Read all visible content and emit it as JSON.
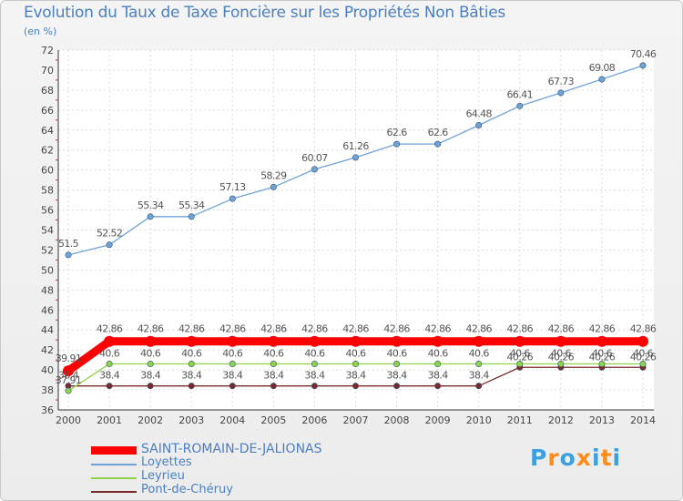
{
  "chart_data": {
    "type": "line",
    "title": "Evolution du Taux de Taxe Foncière sur les Propriétés Non Bâties",
    "ylabel": "(en %)",
    "xlabel": "",
    "x": [
      "2000",
      "2001",
      "2002",
      "2003",
      "2004",
      "2005",
      "2006",
      "2007",
      "2008",
      "2009",
      "2010",
      "2011",
      "2012",
      "2013",
      "2014"
    ],
    "ylim": [
      36,
      72
    ],
    "yticks": [
      36,
      38,
      40,
      42,
      44,
      46,
      48,
      50,
      52,
      54,
      56,
      58,
      60,
      62,
      64,
      66,
      68,
      70,
      72
    ],
    "grid": true,
    "legend_position": "bottom-left",
    "series": [
      {
        "name": "SAINT-ROMAIN-DE-JALIONAS",
        "color": "#ff0000",
        "values": [
          39.91,
          42.86,
          42.86,
          42.86,
          42.86,
          42.86,
          42.86,
          42.86,
          42.86,
          42.86,
          42.86,
          42.86,
          42.86,
          42.86,
          42.86
        ],
        "labels": [
          "39.91",
          "42.86",
          "42.86",
          "42.86",
          "42.86",
          "42.86",
          "42.86",
          "42.86",
          "42.86",
          "42.86",
          "42.86",
          "42.86",
          "42.86",
          "42.86",
          "42.86"
        ]
      },
      {
        "name": "Loyettes",
        "color": "#6fa3d8",
        "values": [
          51.5,
          52.52,
          55.34,
          55.34,
          57.13,
          58.29,
          60.07,
          61.26,
          62.6,
          62.6,
          64.48,
          66.41,
          67.73,
          69.08,
          70.46
        ],
        "labels": [
          "51.5",
          "52.52",
          "55.34",
          "55.34",
          "57.13",
          "58.29",
          "60.07",
          "61.26",
          "62.6",
          "62.6",
          "64.48",
          "66.41",
          "67.73",
          "69.08",
          "70.46"
        ]
      },
      {
        "name": "Leyrieu",
        "color": "#8ed44a",
        "values": [
          37.91,
          40.6,
          40.6,
          40.6,
          40.6,
          40.6,
          40.6,
          40.6,
          40.6,
          40.6,
          40.6,
          40.6,
          40.6,
          40.6,
          40.6
        ],
        "labels": [
          "37.91",
          "40.6",
          "40.6",
          "40.6",
          "40.6",
          "40.6",
          "40.6",
          "40.6",
          "40.6",
          "40.6",
          "40.6",
          "40.6",
          "40.6",
          "40.6",
          "40.6"
        ]
      },
      {
        "name": "Pont-de-Chéruy",
        "color": "#7a2a2a",
        "values": [
          38.4,
          38.4,
          38.4,
          38.4,
          38.4,
          38.4,
          38.4,
          38.4,
          38.4,
          38.4,
          38.4,
          40.26,
          40.26,
          40.26,
          40.26
        ],
        "labels": [
          "38.4",
          "38.4",
          "38.4",
          "38.4",
          "38.4",
          "38.4",
          "38.4",
          "38.4",
          "38.4",
          "38.4",
          "38.4",
          "40.26",
          "40.26",
          "40.26",
          "40.26"
        ]
      }
    ]
  },
  "logo": {
    "text": "Proxiti",
    "colors": [
      "#3aa0e0",
      "#ff8c1a",
      "#3aa0e0",
      "#ff8c1a",
      "#3aa0e0",
      "#ff8c1a",
      "#3aa0e0"
    ]
  }
}
